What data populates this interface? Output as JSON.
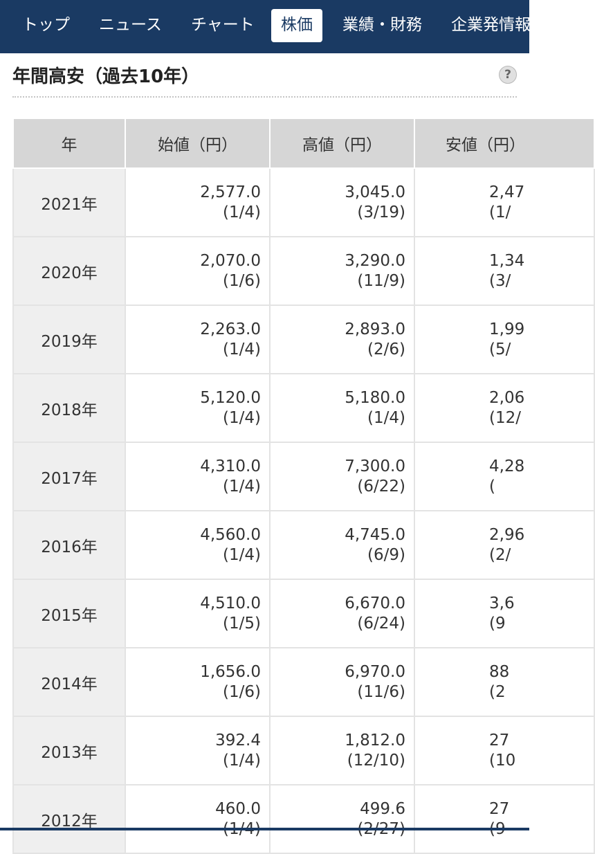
{
  "nav": {
    "items": [
      {
        "label": "トップ",
        "active": false
      },
      {
        "label": "ニュース",
        "active": false
      },
      {
        "label": "チャート",
        "active": false
      },
      {
        "label": "株価",
        "active": true
      },
      {
        "label": "業績・財務",
        "active": false
      },
      {
        "label": "企業発情報",
        "active": false
      }
    ]
  },
  "section": {
    "title": "年間高安（過去10年）",
    "help_icon": "question-circle",
    "help_glyph": "?"
  },
  "table": {
    "headers": [
      "年",
      "始値（円）",
      "高値（円）",
      "安値（円）"
    ],
    "rows": [
      {
        "year": "2021年",
        "open": "2,577.0",
        "open_date": "(1/4)",
        "high": "3,045.0",
        "high_date": "(3/19)",
        "low": "2,47",
        "low_date": "(1/"
      },
      {
        "year": "2020年",
        "open": "2,070.0",
        "open_date": "(1/6)",
        "high": "3,290.0",
        "high_date": "(11/9)",
        "low": "1,34",
        "low_date": "(3/"
      },
      {
        "year": "2019年",
        "open": "2,263.0",
        "open_date": "(1/4)",
        "high": "2,893.0",
        "high_date": "(2/6)",
        "low": "1,99",
        "low_date": "(5/"
      },
      {
        "year": "2018年",
        "open": "5,120.0",
        "open_date": "(1/4)",
        "high": "5,180.0",
        "high_date": "(1/4)",
        "low": "2,06",
        "low_date": "(12/"
      },
      {
        "year": "2017年",
        "open": "4,310.0",
        "open_date": "(1/4)",
        "high": "7,300.0",
        "high_date": "(6/22)",
        "low": "4,28",
        "low_date": "("
      },
      {
        "year": "2016年",
        "open": "4,560.0",
        "open_date": "(1/4)",
        "high": "4,745.0",
        "high_date": "(6/9)",
        "low": "2,96",
        "low_date": "(2/"
      },
      {
        "year": "2015年",
        "open": "4,510.0",
        "open_date": "(1/5)",
        "high": "6,670.0",
        "high_date": "(6/24)",
        "low": "3,6",
        "low_date": "(9"
      },
      {
        "year": "2014年",
        "open": "1,656.0",
        "open_date": "(1/6)",
        "high": "6,970.0",
        "high_date": "(11/6)",
        "low": "88",
        "low_date": "(2"
      },
      {
        "year": "2013年",
        "open": "392.4",
        "open_date": "(1/4)",
        "high": "1,812.0",
        "high_date": "(12/10)",
        "low": "27",
        "low_date": "(10"
      },
      {
        "year": "2012年",
        "open": "460.0",
        "open_date": "(1/4)",
        "high": "499.6",
        "high_date": "(2/27)",
        "low": "27",
        "low_date": "(9"
      }
    ]
  }
}
